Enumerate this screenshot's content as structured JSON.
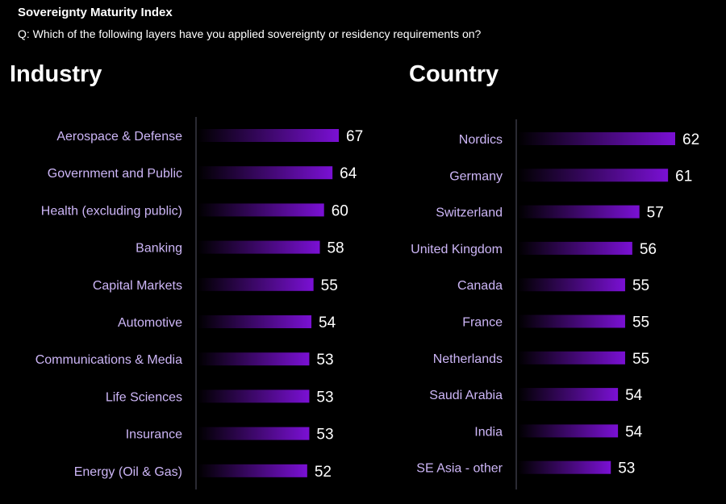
{
  "title": "Sovereignty Maturity Index",
  "subtitle": "Q: Which of the following layers have you applied sovereignty or residency requirements on?",
  "colors": {
    "bar_end": "#7a10d4",
    "bar_start": "#000000",
    "label": "#cdb6f7",
    "axis": "#2a2a33"
  },
  "chart_data": [
    {
      "type": "bar",
      "orientation": "horizontal",
      "title": "Industry",
      "categories": [
        "Aerospace & Defense",
        "Government and Public",
        "Health (excluding public)",
        "Banking",
        "Capital Markets",
        "Automotive",
        "Communications & Media",
        "Life Sciences",
        "Insurance",
        "Energy (Oil & Gas)"
      ],
      "values": [
        67,
        64,
        60,
        58,
        55,
        54,
        53,
        53,
        53,
        52
      ],
      "xlim": [
        0,
        67
      ],
      "grid": false
    },
    {
      "type": "bar",
      "orientation": "horizontal",
      "title": "Country",
      "categories": [
        "Nordics",
        "Germany",
        "Switzerland",
        "United Kingdom",
        "Canada",
        "France",
        "Netherlands",
        "Saudi Arabia",
        "India",
        "SE Asia - other"
      ],
      "values": [
        62,
        61,
        57,
        56,
        55,
        55,
        55,
        54,
        54,
        53
      ],
      "xlim": [
        40,
        62
      ],
      "grid": false
    }
  ]
}
